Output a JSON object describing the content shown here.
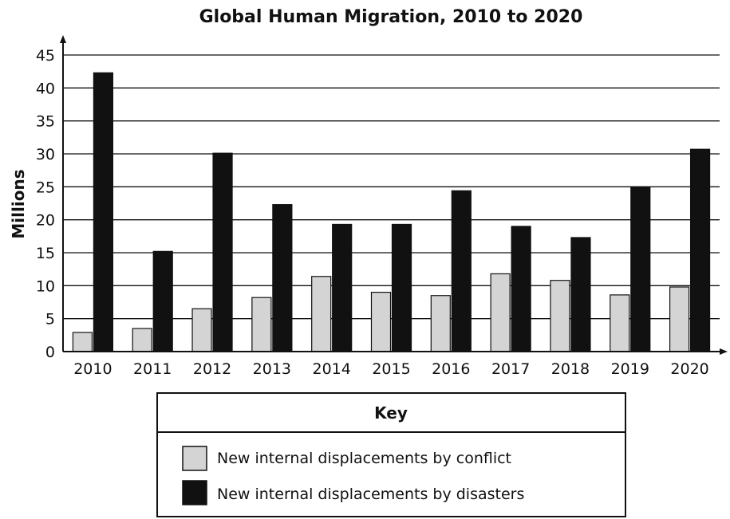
{
  "chart_data": {
    "type": "bar",
    "title": "Global Human Migration, 2010 to 2020",
    "xlabel": "",
    "ylabel": "Millions",
    "ylim": [
      0,
      45
    ],
    "yticks": [
      "0",
      "5",
      "10",
      "15",
      "20",
      "25",
      "30",
      "35",
      "40",
      "45"
    ],
    "grid": true,
    "categories": [
      "2010",
      "2011",
      "2012",
      "2013",
      "2014",
      "2015",
      "2016",
      "2017",
      "2018",
      "2019",
      "2020"
    ],
    "series": [
      {
        "name": "New internal displacements by conflict",
        "color": "#d4d4d4",
        "values": [
          2.9,
          3.5,
          6.5,
          8.2,
          11.4,
          9.0,
          8.5,
          11.8,
          10.8,
          8.6,
          9.8
        ]
      },
      {
        "name": "New internal displacements by disasters",
        "color": "#111111",
        "values": [
          42.3,
          15.2,
          30.1,
          22.3,
          19.3,
          19.3,
          24.4,
          19.0,
          17.3,
          25.0,
          30.7
        ]
      }
    ],
    "legend": {
      "title": "Key",
      "placement": "bottom"
    }
  }
}
